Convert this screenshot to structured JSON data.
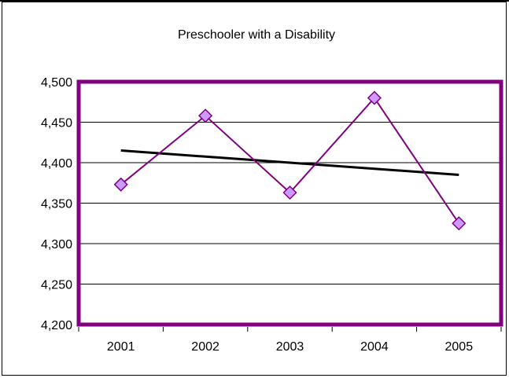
{
  "chart_data": {
    "type": "line",
    "title": "Preschooler with a Disability",
    "xlabel": "",
    "ylabel": "",
    "categories": [
      "2001",
      "2002",
      "2003",
      "2004",
      "2005"
    ],
    "series": [
      {
        "values": [
          4373,
          4458,
          4363,
          4480,
          4325
        ],
        "color": "#800080",
        "marker": "diamond",
        "marker_fill": "#cc99ff"
      },
      {
        "type": "trendline",
        "values": [
          4415,
          4407.5,
          4400,
          4392.5,
          4385
        ],
        "color": "#000000"
      }
    ],
    "y_ticks": [
      "4,200",
      "4,250",
      "4,300",
      "4,350",
      "4,400",
      "4,450",
      "4,500"
    ],
    "ylim": [
      4200,
      4500
    ],
    "grid": true,
    "plot_border_color": "#800080",
    "legend": "none"
  }
}
